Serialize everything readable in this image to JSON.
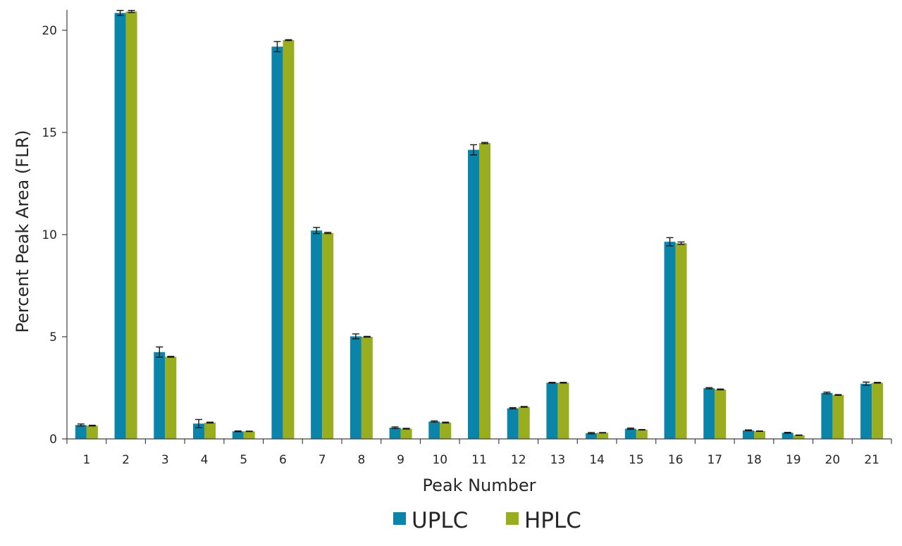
{
  "chart_data": {
    "type": "bar",
    "title": "",
    "xlabel": "Peak Number",
    "ylabel": "Percent Peak Area (FLR)",
    "ylim": [
      0,
      21
    ],
    "yticks": [
      0,
      5,
      10,
      15,
      20
    ],
    "grid": false,
    "legend_position": "bottom",
    "categories": [
      "1",
      "2",
      "3",
      "4",
      "5",
      "6",
      "7",
      "8",
      "9",
      "10",
      "11",
      "12",
      "13",
      "14",
      "15",
      "16",
      "17",
      "18",
      "19",
      "20",
      "21"
    ],
    "series": [
      {
        "name": "UPLC",
        "color": "#0a84a8",
        "values": [
          0.68,
          20.85,
          4.25,
          0.75,
          0.37,
          19.2,
          10.2,
          5.02,
          0.55,
          0.85,
          14.15,
          1.5,
          2.75,
          0.28,
          0.5,
          9.65,
          2.48,
          0.42,
          0.3,
          2.25,
          2.7
        ],
        "errors": [
          0.05,
          0.12,
          0.25,
          0.2,
          0.02,
          0.25,
          0.15,
          0.12,
          0.04,
          0.03,
          0.25,
          0.03,
          0.02,
          0.03,
          0.03,
          0.2,
          0.03,
          0.02,
          0.02,
          0.04,
          0.08
        ]
      },
      {
        "name": "HPLC",
        "color": "#9aad1e",
        "values": [
          0.65,
          20.92,
          4.02,
          0.8,
          0.37,
          19.52,
          10.08,
          5.0,
          0.5,
          0.8,
          14.48,
          1.57,
          2.75,
          0.3,
          0.45,
          9.58,
          2.42,
          0.38,
          0.18,
          2.15,
          2.75
        ],
        "errors": [
          0.02,
          0.05,
          0.02,
          0.02,
          0.01,
          0.02,
          0.03,
          0.02,
          0.02,
          0.02,
          0.03,
          0.02,
          0.02,
          0.01,
          0.01,
          0.06,
          0.02,
          0.01,
          0.01,
          0.02,
          0.02
        ]
      }
    ]
  }
}
